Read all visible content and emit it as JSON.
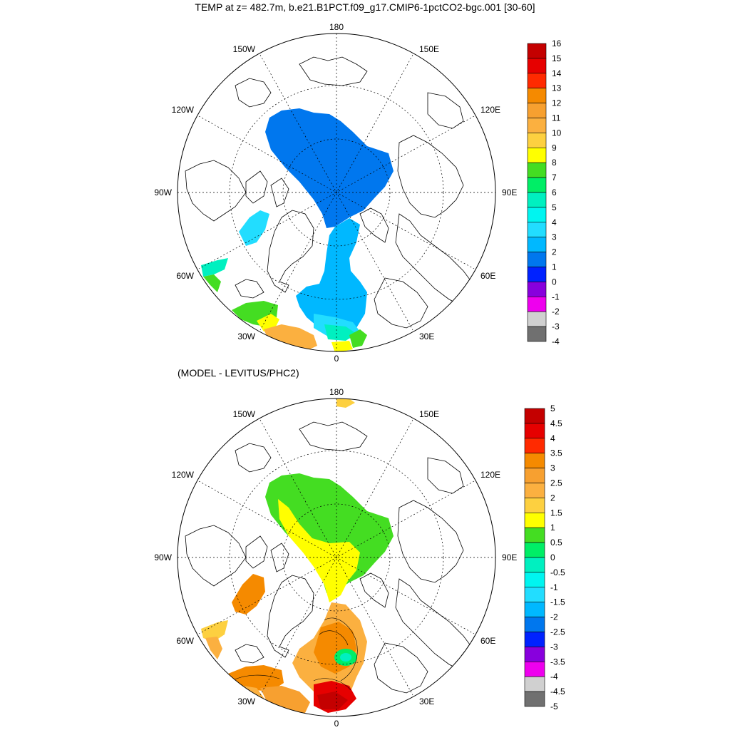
{
  "title": "TEMP at z= 482.7m, b.e21.B1PCT.f09_g17.CMIP6-1pctCO2-bgc.001 [30-60]",
  "subtitle": "(MODEL - LEVITUS/PHC2)",
  "longitude_labels": {
    "lon_180": "180",
    "lon_150w": "150W",
    "lon_150e": "150E",
    "lon_120w": "120W",
    "lon_120e": "120E",
    "lon_90w": "90W",
    "lon_90e": "90E",
    "lon_60w": "60W",
    "lon_60e": "60E",
    "lon_30w": "30W",
    "lon_30e": "30E",
    "lon_0": "0"
  },
  "colorbar_top": {
    "labels": [
      "16",
      "15",
      "14",
      "13",
      "12",
      "11",
      "10",
      "9",
      "8",
      "7",
      "6",
      "5",
      "4",
      "3",
      "2",
      "1",
      "0",
      "-1",
      "-2",
      "-3",
      "-4"
    ],
    "colors": [
      "#c40000",
      "#e60000",
      "#ff2a00",
      "#f58a00",
      "#f7a030",
      "#fbb040",
      "#fdd040",
      "#ffff00",
      "#44dd22",
      "#00ee66",
      "#00f0c0",
      "#00f5f0",
      "#22ddff",
      "#00b8ff",
      "#0077ee",
      "#0022ff",
      "#8800dd",
      "#ee00ee",
      "#d0d0d0",
      "#707070"
    ]
  },
  "colorbar_bottom": {
    "labels": [
      "5",
      "4.5",
      "4",
      "3.5",
      "3",
      "2.5",
      "2",
      "1.5",
      "1",
      "0.5",
      "0",
      "-0.5",
      "-1",
      "-1.5",
      "-2",
      "-2.5",
      "-3",
      "-3.5",
      "-4",
      "-4.5",
      "-5"
    ],
    "colors": [
      "#c40000",
      "#e60000",
      "#ff2a00",
      "#f58a00",
      "#f7a030",
      "#fbb040",
      "#fdd040",
      "#ffff00",
      "#44dd22",
      "#00ee66",
      "#00f0c0",
      "#00f5f0",
      "#22ddff",
      "#00b8ff",
      "#0077ee",
      "#0022ff",
      "#8800dd",
      "#ee00ee",
      "#d0d0d0",
      "#707070"
    ]
  }
}
